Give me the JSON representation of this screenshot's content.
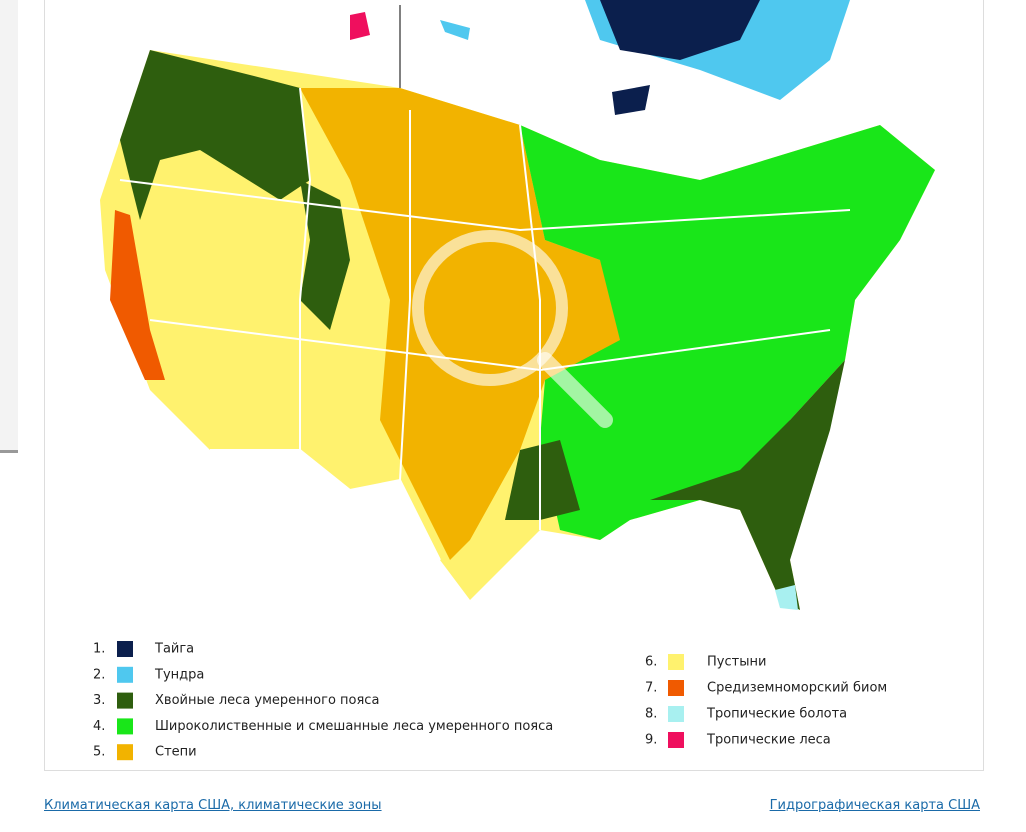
{
  "legend": {
    "items": [
      {
        "number": "1.",
        "label": "Тайга",
        "color": "#0b1f4d"
      },
      {
        "number": "2.",
        "label": "Тундра",
        "color": "#4fc8ef"
      },
      {
        "number": "3.",
        "label": "Хвойные леса умеренного пояса",
        "color": "#2e5e0e"
      },
      {
        "number": "4.",
        "label": "Широколиственные и смешанные леса умеренного пояса",
        "color": "#19e619"
      },
      {
        "number": "5.",
        "label": "Степи",
        "color": "#f2b300"
      },
      {
        "number": "6.",
        "label": "Пустыни",
        "color": "#fff26e"
      },
      {
        "number": "7.",
        "label": "Средиземноморский биом",
        "color": "#f05a00"
      },
      {
        "number": "8.",
        "label": "Тропические болота",
        "color": "#a8f0f0"
      },
      {
        "number": "9.",
        "label": "Тропические леса",
        "color": "#ef0f5e"
      }
    ]
  },
  "links": {
    "left": "Климатическая карта США, климатические зоны",
    "right": "Гидрографическая карта США"
  }
}
